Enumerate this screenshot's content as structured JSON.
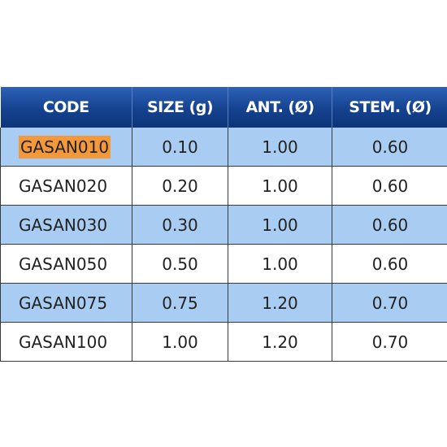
{
  "table": {
    "header": [
      "CODE",
      "SIZE (g)",
      "ANT. (Ø)",
      "STEM. (Ø)"
    ],
    "rows": [
      [
        "GASAN010",
        "0.10",
        "1.00",
        "0.60"
      ],
      [
        "GASAN020",
        "0.20",
        "1.00",
        "0.60"
      ],
      [
        "GASAN030",
        "0.30",
        "1.00",
        "0.60"
      ],
      [
        "GASAN050",
        "0.50",
        "1.00",
        "0.60"
      ],
      [
        "GASAN075",
        "0.75",
        "1.20",
        "0.70"
      ],
      [
        "GASAN100",
        "1.00",
        "1.20",
        "0.70"
      ]
    ]
  }
}
